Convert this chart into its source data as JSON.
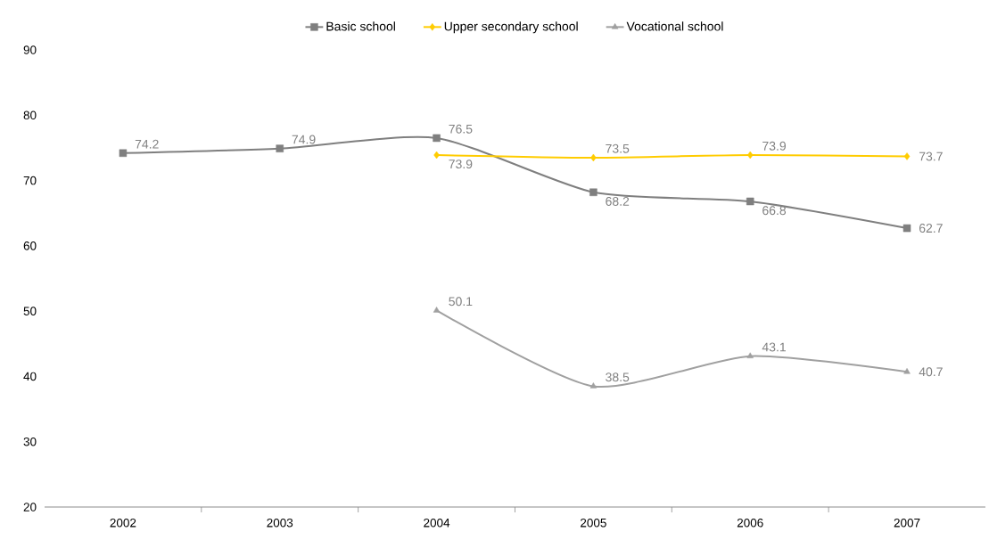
{
  "chart_data": {
    "type": "line",
    "categories": [
      "2002",
      "2003",
      "2004",
      "2005",
      "2006",
      "2007"
    ],
    "series": [
      {
        "name": "Basic school",
        "color": "#7f7f7f",
        "marker": "square",
        "values": [
          74.2,
          74.9,
          76.5,
          68.2,
          66.8,
          62.7
        ]
      },
      {
        "name": "Upper secondary school",
        "color": "#ffcc00",
        "marker": "diamond",
        "values": [
          null,
          null,
          73.9,
          73.5,
          73.9,
          73.7
        ]
      },
      {
        "name": "Vocational school",
        "color": "#a0a0a0",
        "marker": "triangle",
        "values": [
          null,
          null,
          50.1,
          38.5,
          43.1,
          40.7
        ]
      }
    ],
    "ylim": [
      20,
      90
    ],
    "yticks": [
      20,
      30,
      40,
      50,
      60,
      70,
      80,
      90
    ],
    "grid": false,
    "legend": "top",
    "data_labels": true,
    "line_style": "solid"
  }
}
